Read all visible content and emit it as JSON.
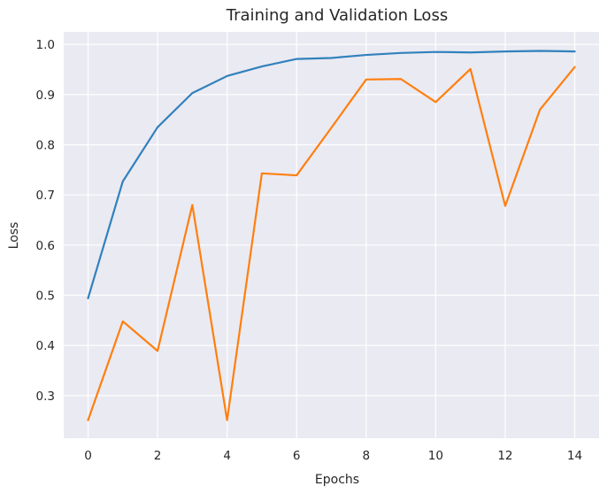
{
  "chart_data": {
    "type": "line",
    "title": "Training and Validation Loss",
    "xlabel": "Epochs",
    "ylabel": "Loss",
    "xlim": [
      -0.7,
      14.7
    ],
    "ylim": [
      0.215,
      1.025
    ],
    "x": [
      0,
      1,
      2,
      3,
      4,
      5,
      6,
      7,
      8,
      9,
      10,
      11,
      12,
      13,
      14
    ],
    "x_ticks": [
      0,
      2,
      4,
      6,
      8,
      10,
      12,
      14
    ],
    "y_ticks": [
      0.3,
      0.4,
      0.5,
      0.6,
      0.7,
      0.8,
      0.9,
      1.0
    ],
    "y_tick_labels": [
      "0.3",
      "0.4",
      "0.5",
      "0.6",
      "0.7",
      "0.8",
      "0.9",
      "1.0"
    ],
    "grid": true,
    "series": [
      {
        "color": "#3181bd",
        "values": [
          0.494,
          0.727,
          0.835,
          0.903,
          0.937,
          0.956,
          0.971,
          0.973,
          0.979,
          0.983,
          0.985,
          0.984,
          0.986,
          0.987,
          0.986
        ]
      },
      {
        "color": "#ff7f0e",
        "values": [
          0.251,
          0.448,
          0.389,
          0.68,
          0.251,
          0.743,
          0.739,
          0.834,
          0.93,
          0.931,
          0.885,
          0.951,
          0.678,
          0.87,
          0.955
        ]
      }
    ]
  }
}
